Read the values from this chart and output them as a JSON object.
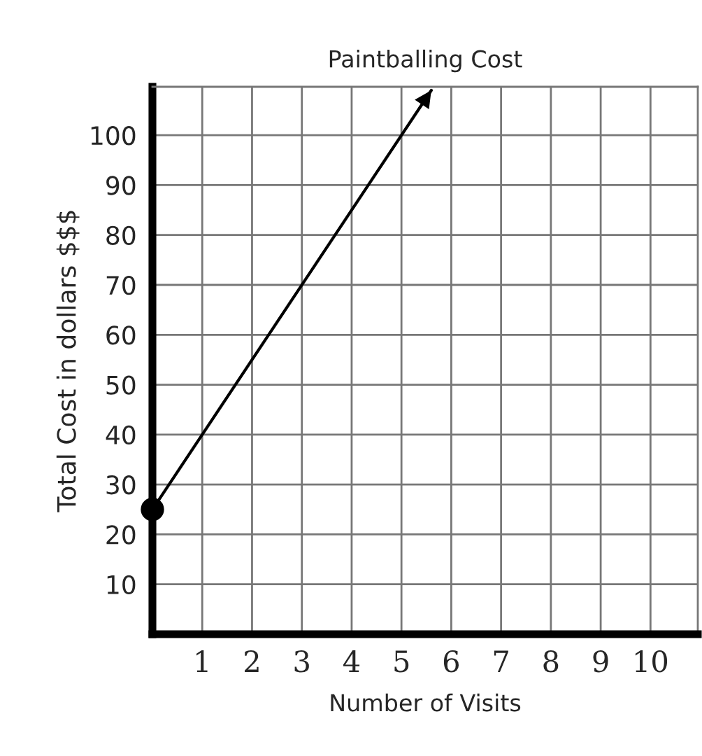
{
  "chart_data": {
    "type": "line",
    "title": "Paintballing Cost",
    "xlabel": "Number of Visits",
    "ylabel": "Total Cost in dollars $$$",
    "series": [
      {
        "color": "#000000",
        "x": [
          0,
          5.6
        ],
        "values": [
          25,
          109
        ]
      }
    ],
    "marker": "circle",
    "line_style": "solid",
    "xlim": [
      0,
      10.95
    ],
    "xticks": [
      1,
      2,
      3,
      4,
      5,
      6,
      7,
      8,
      9,
      10
    ],
    "ylim": [
      0,
      109.7
    ],
    "yticks": [
      10,
      20,
      30,
      40,
      50,
      60,
      70,
      80,
      90,
      100
    ],
    "grid": true
  }
}
